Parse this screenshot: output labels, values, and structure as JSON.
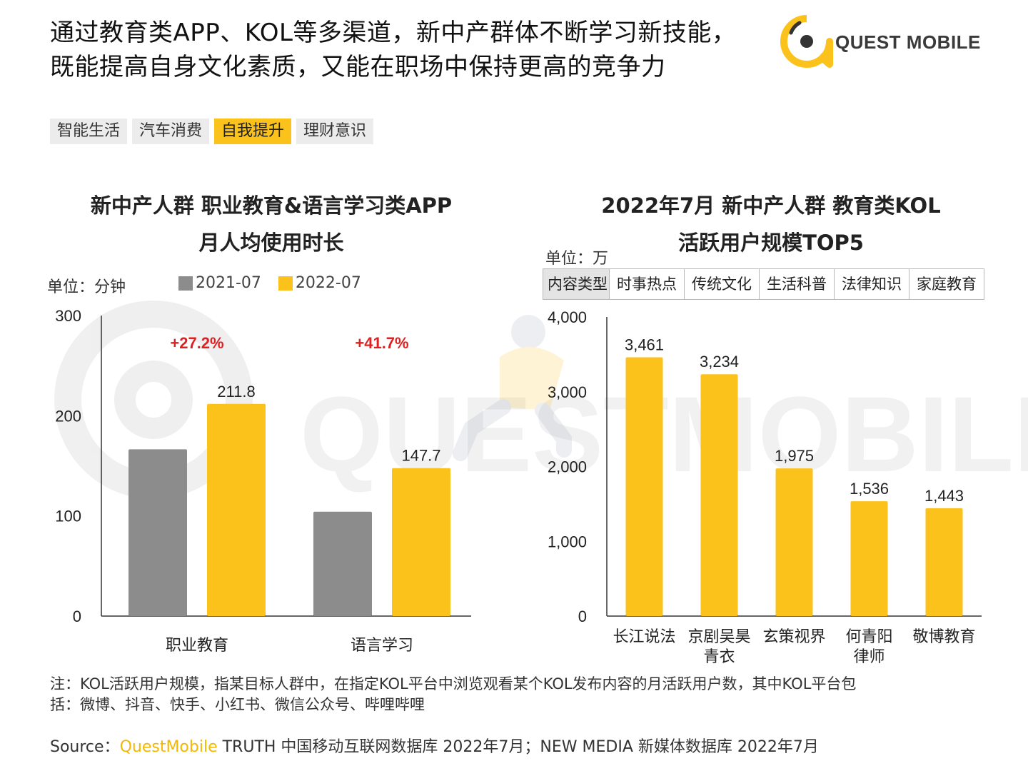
{
  "headline": {
    "line1": "通过教育类APP、KOL等多渠道，新中产群体不断学习新技能，",
    "line2": "既能提高自身文化素质，又能在职场中保持更高的竞争力"
  },
  "logo": {
    "text": "QUEST MOBILE",
    "watermark": "QUESTMOBILE"
  },
  "tabs": [
    {
      "label": "智能生活",
      "active": false
    },
    {
      "label": "汽车消费",
      "active": false
    },
    {
      "label": "自我提升",
      "active": true
    },
    {
      "label": "理财意识",
      "active": false
    }
  ],
  "left_chart": {
    "title_line1": "新中产人群 职业教育&语言学习类APP",
    "title_line2": "月人均使用时长",
    "unit": "单位：分钟",
    "legend": [
      "2021-07",
      "2022-07"
    ]
  },
  "right_chart": {
    "title_line1": "2022年7月 新中产人群 教育类KOL",
    "title_line2": "活跃用户规模TOP5",
    "unit": "单位：万",
    "category_table": [
      "内容类型",
      "时事热点",
      "传统文化",
      "生活科普",
      "法律知识",
      "家庭教育"
    ]
  },
  "colors": {
    "gray": "#8c8c8c",
    "gold": "#fbc21b",
    "red": "#e02020",
    "accent": "#f5b800"
  },
  "chart_data": [
    {
      "type": "bar",
      "categories": [
        "职业教育",
        "语言学习"
      ],
      "series": [
        {
          "name": "2021-07",
          "values": [
            166.5,
            104.2
          ]
        },
        {
          "name": "2022-07",
          "values": [
            211.8,
            147.7
          ]
        }
      ],
      "value_labels": [
        "211.8",
        "147.7"
      ],
      "growth_labels": [
        "+27.2%",
        "+41.7%"
      ],
      "yticks": [
        "0",
        "100",
        "200",
        "300"
      ],
      "ylim": [
        0,
        300
      ],
      "grid": false
    },
    {
      "type": "bar",
      "categories": [
        [
          "长江说法"
        ],
        [
          "京剧吴昊",
          "青衣"
        ],
        [
          "玄策视界"
        ],
        [
          "何青阳",
          "律师"
        ],
        [
          "敬博教育"
        ]
      ],
      "values": [
        3461,
        3234,
        1975,
        1536,
        1443
      ],
      "value_labels": [
        "3,461",
        "3,234",
        "1,975",
        "1,536",
        "1,443"
      ],
      "yticks": [
        "0",
        "1,000",
        "2,000",
        "3,000",
        "4,000"
      ],
      "ylim": [
        0,
        4000
      ],
      "grid": false
    }
  ],
  "note": {
    "line1": "注：KOL活跃用户规模，指某目标人群中，在指定KOL平台中浏览观看某个KOL发布内容的月活跃用户数，其中KOL平台包",
    "line2": "括：微博、抖音、快手、小红书、微信公众号、哔哩哔哩"
  },
  "source": {
    "prefix": "Source：",
    "brand": "QuestMobile",
    "rest": " TRUTH 中国移动互联网数据库 2022年7月；NEW MEDIA 新媒体数据库 2022年7月"
  }
}
